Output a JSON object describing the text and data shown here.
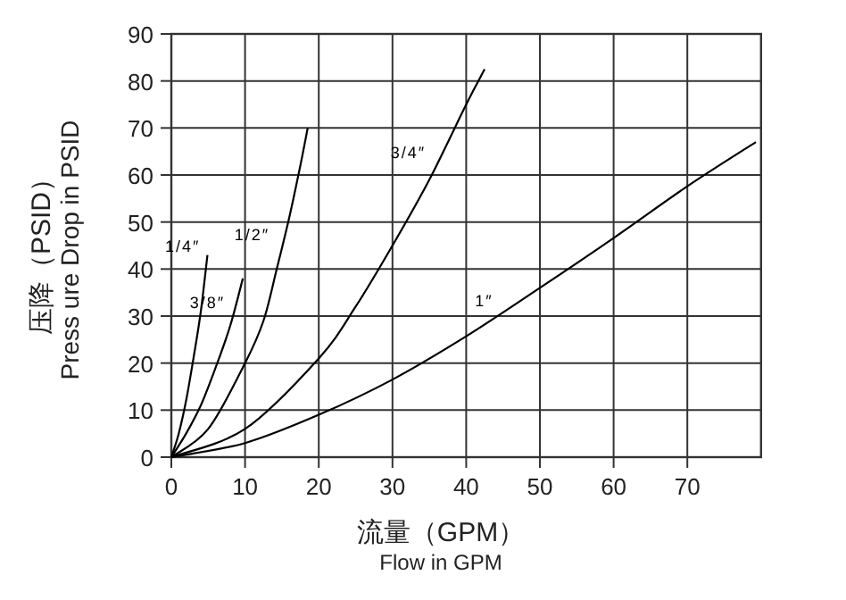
{
  "chart_data": {
    "type": "line",
    "xlabel": "流量（GPM）\nFlow in GPM",
    "ylabel": "压降（PSID）\nPress ure Drop in PSID",
    "xlim": [
      0,
      80
    ],
    "ylim": [
      0,
      90
    ],
    "xticks": [
      0,
      10,
      20,
      30,
      40,
      50,
      60,
      70
    ],
    "yticks": [
      0,
      10,
      20,
      30,
      40,
      50,
      60,
      70,
      80,
      90
    ],
    "grid": true,
    "marker": "none",
    "line_style": "solid",
    "series": [
      {
        "name": "1/4″",
        "color": "#000000",
        "x": [
          0,
          1,
          2,
          3,
          4,
          4.9
        ],
        "values": [
          0,
          5,
          12,
          21,
          31,
          43
        ]
      },
      {
        "name": "3/8″",
        "color": "#000000",
        "x": [
          0,
          2,
          4,
          6,
          8,
          9.7
        ],
        "values": [
          0,
          5,
          11,
          19,
          28,
          38
        ]
      },
      {
        "name": "1/2″",
        "color": "#000000",
        "x": [
          0,
          5,
          10,
          12.5,
          14.3,
          16,
          17.5,
          18.5
        ],
        "values": [
          0,
          6,
          20,
          29,
          40,
          51,
          62,
          70
        ]
      },
      {
        "name": "3/4″",
        "color": "#000000",
        "x": [
          0,
          10,
          20,
          25,
          30,
          35,
          40,
          42.5
        ],
        "values": [
          0,
          6,
          21,
          32,
          45,
          59,
          75,
          82.5
        ]
      },
      {
        "name": "1″",
        "color": "#000000",
        "x": [
          0,
          10,
          20,
          30,
          40,
          50,
          60,
          70,
          79.3
        ],
        "values": [
          0,
          3,
          9,
          16.5,
          25.7,
          36,
          46.6,
          57.6,
          67
        ]
      }
    ]
  }
}
